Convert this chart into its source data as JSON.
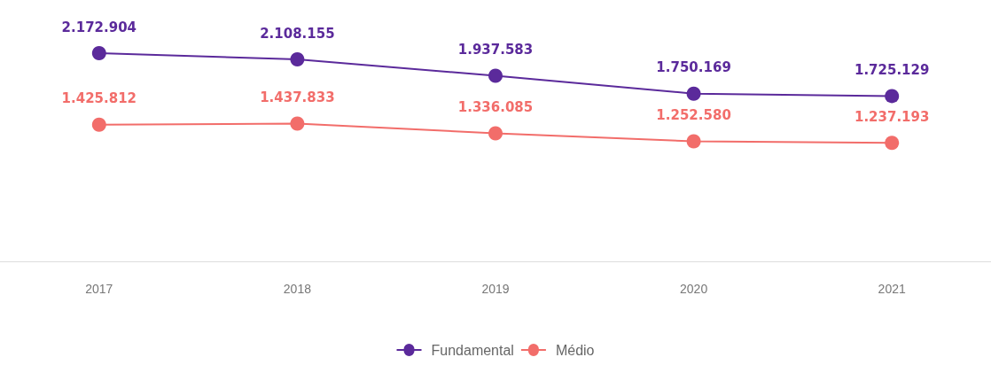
{
  "chart_data": {
    "type": "line",
    "categories": [
      "2017",
      "2018",
      "2019",
      "2020",
      "2021"
    ],
    "series": [
      {
        "name": "Fundamental",
        "color": "#5b2a9b",
        "values": [
          2172904,
          2108155,
          1937583,
          1750169,
          1725129
        ],
        "value_labels": [
          "2.172.904",
          "2.108.155",
          "1.937.583",
          "1.750.169",
          "1.725.129"
        ]
      },
      {
        "name": "Médio",
        "color": "#f26d6a",
        "values": [
          1425812,
          1437833,
          1336085,
          1252580,
          1237193
        ],
        "value_labels": [
          "1.425.812",
          "1.437.833",
          "1.336.085",
          "1.252.580",
          "1.237.193"
        ]
      }
    ],
    "marker": "circle",
    "line_style": "solid",
    "legend": "bottom",
    "grid": false
  }
}
